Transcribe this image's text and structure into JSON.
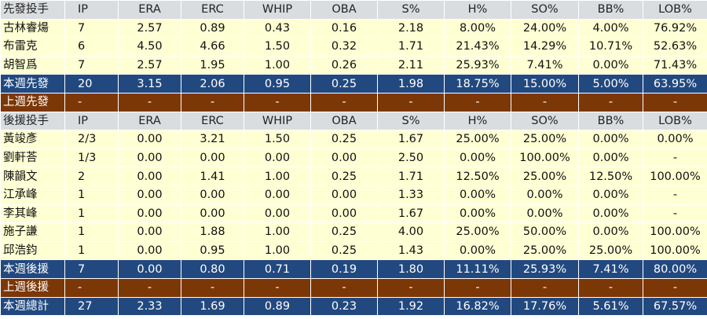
{
  "columns": [
    "IP",
    "ERA",
    "ERC",
    "WHIP",
    "OBA",
    "S%",
    "H%",
    "SO%",
    "BB%",
    "LOB%"
  ],
  "sections": [
    {
      "header": "先發投手",
      "rows": [
        [
          "古林睿煬",
          "7",
          "2.57",
          "0.89",
          "0.43",
          "0.16",
          "2.18",
          "8.00%",
          "24.00%",
          "4.00%",
          "76.92%"
        ],
        [
          "布雷克",
          "6",
          "4.50",
          "4.66",
          "1.50",
          "0.32",
          "1.71",
          "21.43%",
          "14.29%",
          "10.71%",
          "52.63%"
        ],
        [
          "胡智爲",
          "7",
          "2.57",
          "1.95",
          "1.00",
          "0.26",
          "2.11",
          "25.93%",
          "7.41%",
          "0.00%",
          "71.43%"
        ]
      ],
      "total": [
        "本週先發",
        "20",
        "3.15",
        "2.06",
        "0.95",
        "0.25",
        "1.98",
        "18.75%",
        "15.00%",
        "5.00%",
        "63.95%"
      ],
      "last_week": [
        "上週先發",
        "-",
        "-",
        "-",
        "-",
        "-",
        "-",
        "-",
        "-",
        "-",
        "-"
      ]
    },
    {
      "header": "後援投手",
      "rows": [
        [
          "黃竣彥",
          "2/3",
          "0.00",
          "3.21",
          "1.50",
          "0.25",
          "1.67",
          "25.00%",
          "25.00%",
          "0.00%",
          "0.00%"
        ],
        [
          "劉軒荅",
          "1/3",
          "0.00",
          "0.00",
          "0.00",
          "0.00",
          "2.50",
          "0.00%",
          "100.00%",
          "0.00%",
          "-"
        ],
        [
          "陳韻文",
          "2",
          "0.00",
          "1.41",
          "1.00",
          "0.25",
          "1.71",
          "12.50%",
          "25.00%",
          "12.50%",
          "100.00%"
        ],
        [
          "江承峰",
          "1",
          "0.00",
          "0.00",
          "0.00",
          "0.00",
          "1.33",
          "0.00%",
          "0.00%",
          "0.00%",
          "-"
        ],
        [
          "李其峰",
          "1",
          "0.00",
          "0.00",
          "0.00",
          "0.00",
          "1.67",
          "0.00%",
          "0.00%",
          "0.00%",
          "-"
        ],
        [
          "施子謙",
          "1",
          "0.00",
          "1.88",
          "1.00",
          "0.25",
          "4.00",
          "25.00%",
          "50.00%",
          "0.00%",
          "100.00%"
        ],
        [
          "邱浩鈞",
          "1",
          "0.00",
          "0.95",
          "1.00",
          "0.25",
          "1.43",
          "0.00%",
          "25.00%",
          "25.00%",
          "100.00%"
        ]
      ],
      "total": [
        "本週後援",
        "7",
        "0.00",
        "0.80",
        "0.71",
        "0.19",
        "1.80",
        "11.11%",
        "25.93%",
        "7.41%",
        "80.00%"
      ],
      "last_week": [
        "上週後援",
        "-",
        "-",
        "-",
        "-",
        "-",
        "-",
        "-",
        "-",
        "-",
        "-"
      ]
    }
  ],
  "grand_total": [
    "本週總計",
    "27",
    "2.33",
    "1.69",
    "0.89",
    "0.23",
    "1.92",
    "16.82%",
    "17.76%",
    "5.61%",
    "67.57%"
  ],
  "colors": {
    "header_bg": "#d9dde0",
    "data_bg": "#ffffd4",
    "total_bg": "#22497f",
    "last_week_bg": "#7c3706"
  }
}
